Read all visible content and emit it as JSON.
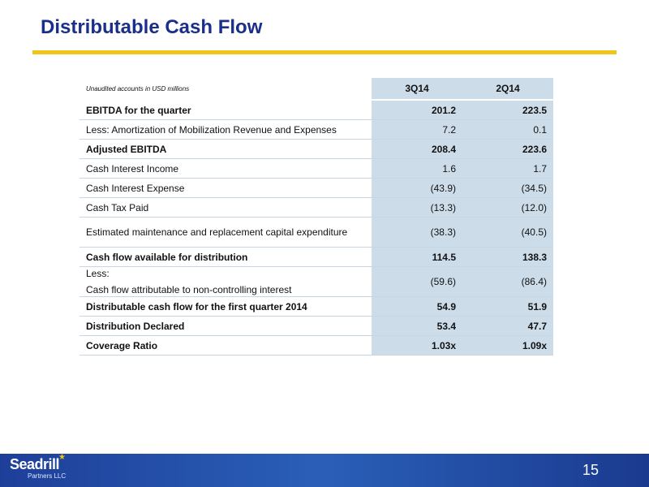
{
  "slide": {
    "title": "Distributable Cash Flow",
    "page_number": "15"
  },
  "table": {
    "header": {
      "note": "Unaudited accounts in USD millions",
      "col1": "3Q14",
      "col2": "2Q14"
    },
    "rows": [
      {
        "label": "EBITDA for the quarter",
        "v1": "201.2",
        "v2": "223.5"
      },
      {
        "label": "Less: Amortization of Mobilization Revenue and Expenses",
        "v1": "7.2",
        "v2": "0.1"
      },
      {
        "label": "Adjusted EBITDA",
        "v1": "208.4",
        "v2": "223.6"
      },
      {
        "label": "Cash Interest Income",
        "v1": "1.6",
        "v2": "1.7"
      },
      {
        "label": "Cash Interest Expense",
        "v1": "(43.9)",
        "v2": "(34.5)"
      },
      {
        "label": "Cash Tax Paid",
        "v1": "(13.3)",
        "v2": "(12.0)"
      },
      {
        "label": "Estimated maintenance and replacement capital expenditure",
        "v1": "(38.3)",
        "v2": "(40.5)"
      },
      {
        "label": "Cash flow available for distribution",
        "v1": "114.5",
        "v2": "138.3"
      },
      {
        "label_line1": "Less:",
        "label_line2": "Cash flow attributable to non-controlling interest",
        "v1": "(59.6)",
        "v2": "(86.4)"
      },
      {
        "label": "Distributable cash flow for the first quarter 2014",
        "v1": "54.9",
        "v2": "51.9"
      },
      {
        "label": "Distribution Declared",
        "v1": "53.4",
        "v2": "47.7"
      },
      {
        "label": "Coverage Ratio",
        "v1": "1.03x",
        "v2": "1.09x"
      }
    ]
  },
  "footer": {
    "logo_name": "Seadrill",
    "logo_sub": "Partners LLC",
    "logo_icon": "star-icon",
    "colors": {
      "bar": "#1e3f99",
      "accent": "#f0c419",
      "title": "#1a2f8c",
      "cell": "#cddce9"
    }
  }
}
